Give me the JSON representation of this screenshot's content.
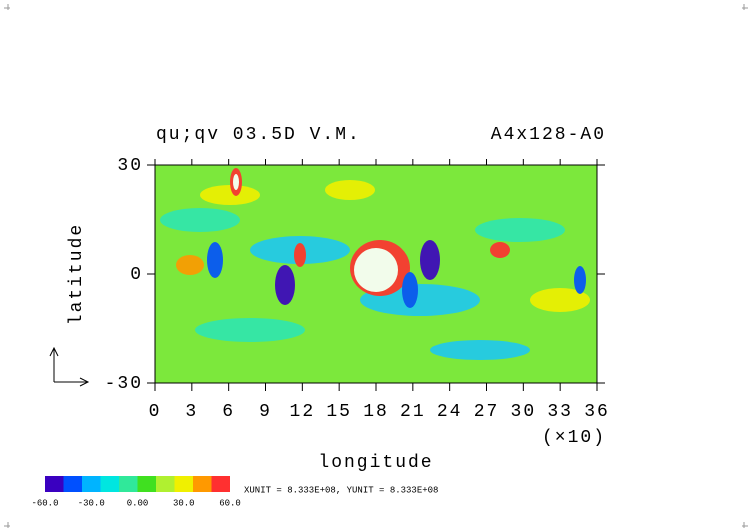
{
  "chart_data": {
    "type": "contour",
    "title_left": "qu;qv 03.5D V.M.",
    "title_right": "A4x128-A0",
    "xlabel": "longitude",
    "ylabel": "latitude",
    "x_scale_label": "(×10)",
    "xlim": [
      0,
      36
    ],
    "xticks": [
      0,
      3,
      6,
      9,
      12,
      15,
      18,
      21,
      24,
      27,
      30,
      33,
      36
    ],
    "ylim": [
      -30,
      30
    ],
    "yticks": [
      -30,
      0,
      30
    ],
    "unit_note": "XUNIT = 8.333E+08, YUNIT = 8.333E+08",
    "colorbar": {
      "lim": [
        -60,
        60
      ],
      "ticks": [
        {
          "value": -60,
          "label": "-60.0"
        },
        {
          "value": -30,
          "label": "-30.0"
        },
        {
          "value": 0,
          "label": "0.00"
        },
        {
          "value": 30,
          "label": "30.0"
        },
        {
          "value": 60,
          "label": "60.0"
        }
      ],
      "colors": [
        "#3a00c0",
        "#0050ff",
        "#00b4ff",
        "#00e6e0",
        "#30e89a",
        "#40e020",
        "#b0f030",
        "#f0f000",
        "#ff9900",
        "#ff3030"
      ]
    }
  }
}
